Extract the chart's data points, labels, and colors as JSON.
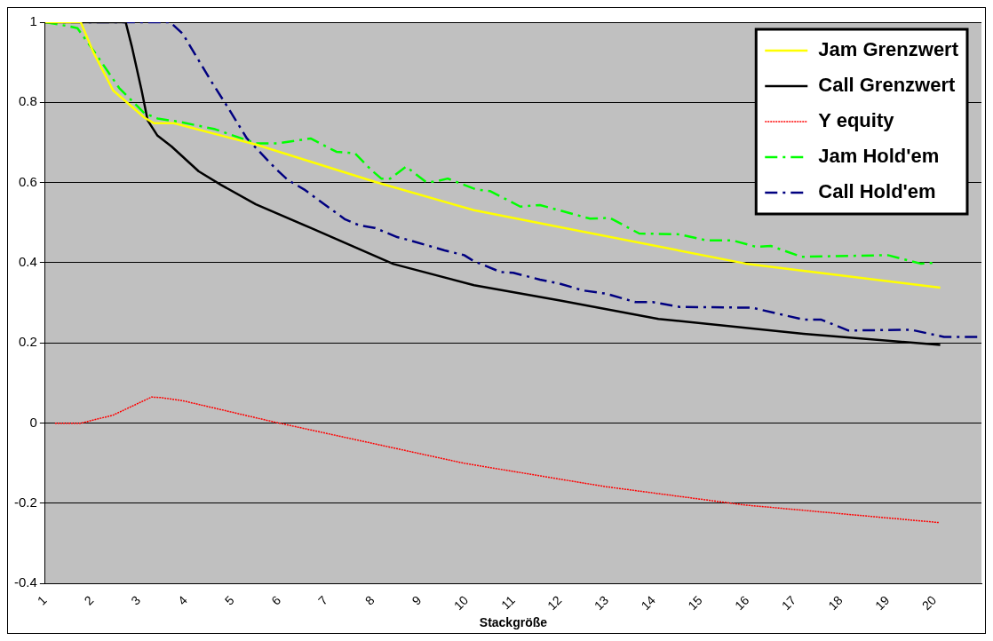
{
  "chart_data": {
    "type": "line",
    "xlabel": "Stackgröße",
    "xlim": [
      1,
      21
    ],
    "xticks": [
      1,
      2,
      3,
      4,
      5,
      6,
      7,
      8,
      9,
      10,
      11,
      12,
      13,
      14,
      15,
      16,
      17,
      18,
      19,
      20
    ],
    "ylim": [
      -0.4,
      1
    ],
    "yticks": [
      -0.4,
      -0.2,
      0,
      0.2,
      0.4,
      0.6,
      0.8,
      1
    ],
    "grid": "y",
    "legend": "top right",
    "marker": "none",
    "series": [
      {
        "name": "Jam Grenzwert",
        "color": "#ffff00",
        "line_style": "solid",
        "x": [
          1,
          1.76,
          2.03,
          2.45,
          3.12,
          3.33,
          3.75,
          5.5,
          8.04,
          10.16,
          15.96,
          20.12
        ],
        "values": [
          1,
          1,
          0.925,
          0.83,
          0.762,
          0.748,
          0.748,
          0.695,
          0.602,
          0.531,
          0.398,
          0.338
        ]
      },
      {
        "name": "Call Grenzwert",
        "color": "#000000",
        "line_style": "solid",
        "x": [
          1,
          2.72,
          2.85,
          3.06,
          3.19,
          3.4,
          3.7,
          4.28,
          4.76,
          5.5,
          6.67,
          8.44,
          10.16,
          12,
          14.1,
          17.2,
          20.12
        ],
        "values": [
          1,
          1,
          0.94,
          0.83,
          0.755,
          0.717,
          0.69,
          0.628,
          0.594,
          0.546,
          0.487,
          0.397,
          0.344,
          0.306,
          0.26,
          0.223,
          0.195
        ]
      },
      {
        "name": "Y equity",
        "color": "#ff0000",
        "line_style": "dotted",
        "x": [
          1.21,
          1.76,
          2.45,
          3.27,
          3.46,
          3.94,
          5.85,
          7.9,
          9.95,
          12.95,
          15.94,
          20.1
        ],
        "values": [
          0,
          0,
          0.02,
          0.065,
          0.064,
          0.056,
          0.004,
          -0.048,
          -0.1,
          -0.158,
          -0.204,
          -0.248
        ]
      },
      {
        "name": "Jam Hold'em",
        "color": "#00ff00",
        "line_style": "dashed",
        "x": [
          1,
          1.5,
          1.69,
          2.1,
          2.58,
          3.12,
          3.4,
          3.94,
          4.63,
          5.5,
          5.98,
          6.67,
          7.22,
          7.62,
          7.97,
          8.18,
          8.37,
          8.71,
          9.13,
          9.32,
          9.6,
          10.2,
          10.5,
          11.15,
          11.57,
          12.64,
          13.06,
          13.69,
          14.55,
          15.12,
          15.68,
          16.18,
          16.5,
          17.16,
          19,
          19.7,
          20.03
        ],
        "values": [
          1,
          0.99,
          0.985,
          0.918,
          0.836,
          0.773,
          0.76,
          0.75,
          0.733,
          0.698,
          0.698,
          0.71,
          0.677,
          0.673,
          0.631,
          0.61,
          0.61,
          0.64,
          0.602,
          0.602,
          0.61,
          0.583,
          0.579,
          0.54,
          0.544,
          0.51,
          0.512,
          0.473,
          0.471,
          0.456,
          0.456,
          0.44,
          0.442,
          0.415,
          0.419,
          0.398,
          0.4
        ]
      },
      {
        "name": "Call Hold'em",
        "color": "#000080",
        "line_style": "dashed",
        "x": [
          1,
          3.67,
          3.94,
          4.55,
          4.9,
          5.31,
          5.92,
          6.19,
          6.53,
          7.41,
          7.7,
          8.04,
          8.52,
          8.79,
          9.53,
          9.95,
          10.16,
          10.73,
          11,
          11.57,
          11.99,
          12.49,
          12.98,
          13.61,
          13.98,
          14.55,
          16.1,
          16.8,
          17.22,
          17.58,
          18.16,
          19.5,
          20.2,
          21
        ],
        "values": [
          1,
          1,
          0.971,
          0.852,
          0.788,
          0.71,
          0.635,
          0.606,
          0.583,
          0.508,
          0.494,
          0.487,
          0.464,
          0.456,
          0.431,
          0.419,
          0.404,
          0.377,
          0.375,
          0.358,
          0.348,
          0.331,
          0.323,
          0.302,
          0.302,
          0.29,
          0.288,
          0.269,
          0.258,
          0.258,
          0.231,
          0.233,
          0.215,
          0.215
        ]
      }
    ]
  }
}
